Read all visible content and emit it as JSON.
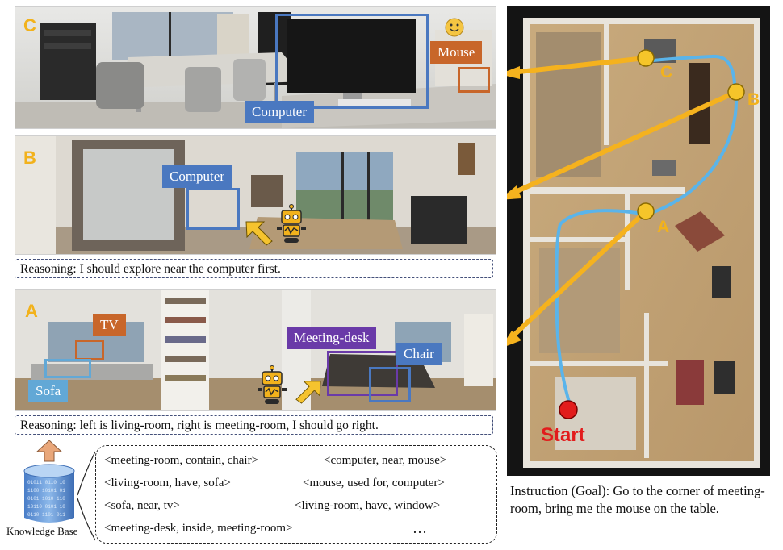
{
  "panels": {
    "C": {
      "letter": "C",
      "labels": {
        "computer": "Computer",
        "mouse": "Mouse"
      }
    },
    "B": {
      "letter": "B",
      "labels": {
        "computer": "Computer"
      },
      "reasoning": "Reasoning: I should explore near the computer first."
    },
    "A": {
      "letter": "A",
      "labels": {
        "tv": "TV",
        "sofa": "Sofa",
        "meeting_desk": "Meeting-desk",
        "chair": "Chair"
      },
      "reasoning": "Reasoning: left is living-room, right is meeting-room, I should go right."
    }
  },
  "knowledge_base": {
    "label": "Knowledge Base",
    "triples": [
      "<meeting-room, contain, chair>",
      "<computer, near, mouse>",
      "<living-room, have, sofa>",
      "<mouse, used for, computer>",
      "<sofa, near, tv>",
      "<living-room, have, window>",
      "<meeting-desk, inside, meeting-room>",
      "…"
    ]
  },
  "map": {
    "waypoints": [
      "A",
      "B",
      "C"
    ],
    "start_label": "Start"
  },
  "instruction": "Instruction (Goal): Go to the corner of meeting-room, bring me the mouse on the table.",
  "colors": {
    "letter": "#f2b21c",
    "computer_label": "#4a78c0",
    "mouse_label": "#c8662a",
    "tv_label": "#c8662a",
    "sofa_label": "#62a8d6",
    "meeting_desk_label": "#6a3aa8",
    "chair_label": "#4a78c0",
    "path": "#5ab4ea",
    "arrow": "#f5b21e",
    "start": "#e21c1c"
  }
}
